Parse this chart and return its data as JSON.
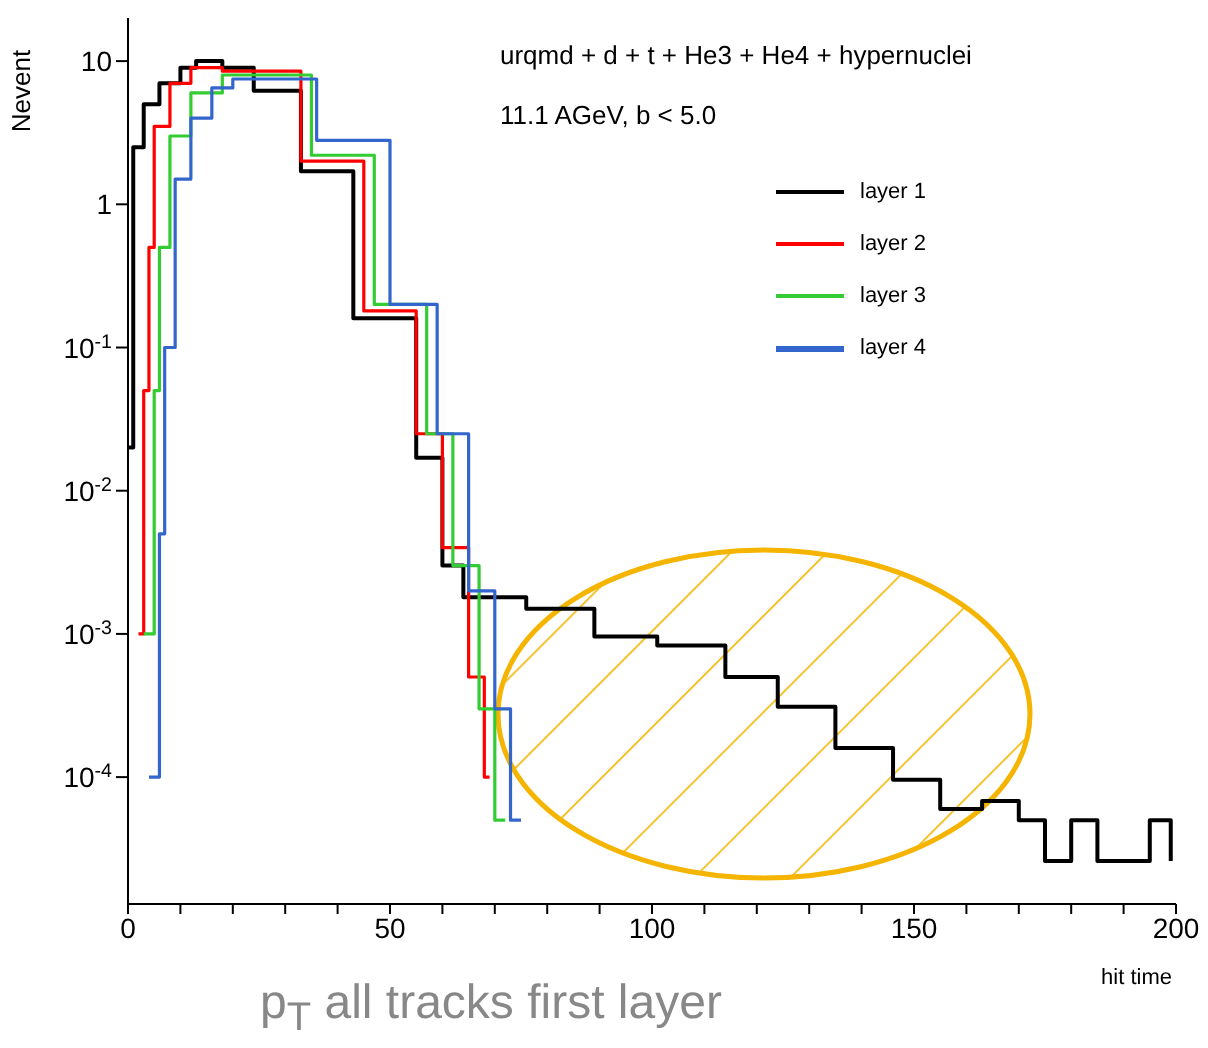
{
  "chart_data": {
    "type": "step",
    "xlabel": "hit time",
    "ylabel": "Nevent",
    "log": "y",
    "legend": "top right",
    "grid": false,
    "xlim": [
      0,
      200
    ],
    "xticks": [
      0,
      {
        "value": 10,
        "label": null
      },
      {
        "value": 20,
        "label": null
      },
      {
        "value": 30,
        "label": null
      },
      {
        "value": 40,
        "label": null
      },
      50,
      {
        "value": 60,
        "label": null
      },
      {
        "value": 70,
        "label": null
      },
      {
        "value": 80,
        "label": null
      },
      {
        "value": 90,
        "label": null
      },
      100,
      {
        "value": 110,
        "label": null
      },
      {
        "value": 120,
        "label": null
      },
      {
        "value": 130,
        "label": null
      },
      {
        "value": 140,
        "label": null
      },
      150,
      {
        "value": 160,
        "label": null
      },
      {
        "value": 170,
        "label": null
      },
      {
        "value": 180,
        "label": null
      },
      {
        "value": 190,
        "label": null
      },
      200
    ],
    "ylim": [
      1.3e-05,
      20
    ],
    "yticks": [
      {
        "value": 0.0001,
        "label": "10$^{-4}$"
      },
      {
        "value": 0.001,
        "label": "10$^{-3}$"
      },
      {
        "value": 0.01,
        "label": "10$^{-2}$"
      },
      {
        "value": 0.1,
        "label": "10$^{-1}$"
      },
      1,
      10
    ],
    "annotations": [
      "urqmd + d + t + He3 + He4 + hypernuclei",
      "11.1 AGeV, b < 5.0",
      "p$_{T}$ all tracks first layer"
    ],
    "series": [
      {
        "name": "layer 1",
        "color": "#000000",
        "x": [
          0,
          1,
          3,
          6,
          10,
          13,
          18,
          24,
          33,
          43,
          55,
          60,
          64,
          76,
          89,
          101,
          114,
          124,
          135,
          146,
          155,
          163,
          170,
          175,
          180,
          185,
          190,
          195,
          199
        ],
        "values": [
          0.02,
          2.5,
          5,
          7,
          9,
          10,
          9,
          6.2,
          1.7,
          0.16,
          0.017,
          0.003,
          0.0018,
          0.0015,
          0.00096,
          0.00083,
          0.0005,
          0.00031,
          0.00016,
          9.6e-05,
          6e-05,
          6.8e-05,
          5e-05,
          2.6e-05,
          5e-05,
          2.6e-05,
          2.6e-05,
          5e-05,
          2.6e-05
        ]
      },
      {
        "name": "layer 2",
        "color": "#ff0000",
        "x": [
          2,
          3,
          4,
          5,
          8,
          12,
          18,
          33,
          45,
          55,
          60,
          65,
          68,
          69
        ],
        "values": [
          0.001,
          0.05,
          0.5,
          3.5,
          7,
          9,
          8.5,
          2,
          0.18,
          0.025,
          0.004,
          0.0005,
          0.0001,
          0.0001
        ]
      },
      {
        "name": "layer 3",
        "color": "#33cc33",
        "x": [
          3,
          5,
          6,
          8,
          12,
          18,
          35,
          47,
          57,
          62,
          67,
          70,
          72
        ],
        "values": [
          0.001,
          0.05,
          0.5,
          3,
          6,
          8,
          2.2,
          0.2,
          0.025,
          0.003,
          0.0003,
          5e-05,
          5e-05
        ]
      },
      {
        "name": "layer 4",
        "color": "#3366cc",
        "x": [
          4,
          6,
          7,
          9,
          12,
          16,
          20,
          36,
          50,
          59,
          65,
          70,
          73,
          75
        ],
        "values": [
          0.0001,
          0.005,
          0.1,
          1.5,
          4,
          6.5,
          7.5,
          2.8,
          0.2,
          0.025,
          0.002,
          0.0003,
          5e-05,
          5e-05
        ]
      }
    ]
  }
}
